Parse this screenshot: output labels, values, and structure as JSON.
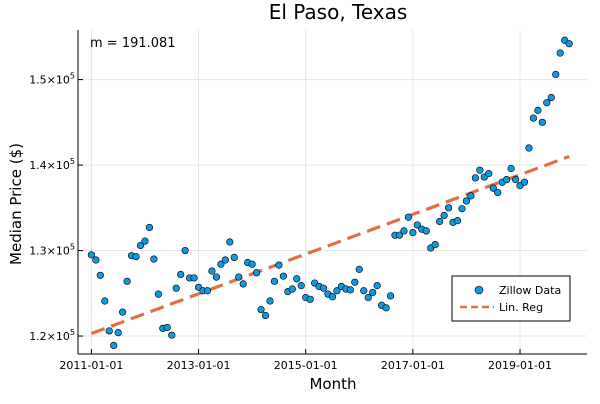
{
  "chart_data": {
    "type": "scatter",
    "title": "El Paso, Texas",
    "annotation": "m = 191.081",
    "xlabel": "Month",
    "ylabel": "Median Price ($)",
    "x_ticks": [
      "2011-01-01",
      "2013-01-01",
      "2015-01-01",
      "2017-01-01",
      "2019-01-01"
    ],
    "y_ticks": [
      {
        "value": 120000,
        "mantissa": "1.2×10",
        "exp": "5"
      },
      {
        "value": 130000,
        "mantissa": "1.3×10",
        "exp": "5"
      },
      {
        "value": 140000,
        "mantissa": "1.4×10",
        "exp": "5"
      },
      {
        "value": 150000,
        "mantissa": "1.5×10",
        "exp": "5"
      }
    ],
    "xlim": [
      "2010-10-01",
      "2020-04-01"
    ],
    "ylim": [
      117900,
      155800
    ],
    "grid": true,
    "legend_position": "bottom-right",
    "series": [
      {
        "name": "Zillow Data",
        "kind": "scatter",
        "color": "#0f99de",
        "x": [
          "2011-01-01",
          "2011-02-01",
          "2011-03-01",
          "2011-04-01",
          "2011-05-01",
          "2011-06-01",
          "2011-07-01",
          "2011-08-01",
          "2011-09-01",
          "2011-10-01",
          "2011-11-01",
          "2011-12-01",
          "2012-01-01",
          "2012-02-01",
          "2012-03-01",
          "2012-04-01",
          "2012-05-01",
          "2012-06-01",
          "2012-07-01",
          "2012-08-01",
          "2012-09-01",
          "2012-10-01",
          "2012-11-01",
          "2012-12-01",
          "2013-01-01",
          "2013-02-01",
          "2013-03-01",
          "2013-04-01",
          "2013-05-01",
          "2013-06-01",
          "2013-07-01",
          "2013-08-01",
          "2013-09-01",
          "2013-10-01",
          "2013-11-01",
          "2013-12-01",
          "2014-01-01",
          "2014-02-01",
          "2014-03-01",
          "2014-04-01",
          "2014-05-01",
          "2014-06-01",
          "2014-07-01",
          "2014-08-01",
          "2014-09-01",
          "2014-10-01",
          "2014-11-01",
          "2014-12-01",
          "2015-01-01",
          "2015-02-01",
          "2015-03-01",
          "2015-04-01",
          "2015-05-01",
          "2015-06-01",
          "2015-07-01",
          "2015-08-01",
          "2015-09-01",
          "2015-10-01",
          "2015-11-01",
          "2015-12-01",
          "2016-01-01",
          "2016-02-01",
          "2016-03-01",
          "2016-04-01",
          "2016-05-01",
          "2016-06-01",
          "2016-07-01",
          "2016-08-01",
          "2016-09-01",
          "2016-10-01",
          "2016-11-01",
          "2016-12-01",
          "2017-01-01",
          "2017-02-01",
          "2017-03-01",
          "2017-04-01",
          "2017-05-01",
          "2017-06-01",
          "2017-07-01",
          "2017-08-01",
          "2017-09-01",
          "2017-10-01",
          "2017-11-01",
          "2017-12-01",
          "2018-01-01",
          "2018-02-01",
          "2018-03-01",
          "2018-04-01",
          "2018-05-01",
          "2018-06-01",
          "2018-07-01",
          "2018-08-01",
          "2018-09-01",
          "2018-10-01",
          "2018-11-01",
          "2018-12-01",
          "2019-01-01",
          "2019-02-01",
          "2019-03-01",
          "2019-04-01",
          "2019-05-01",
          "2019-06-01",
          "2019-07-01",
          "2019-08-01",
          "2019-09-01",
          "2019-10-01",
          "2019-11-01",
          "2019-12-01"
        ],
        "y": [
          129500,
          128900,
          127100,
          124100,
          120600,
          118900,
          120400,
          122800,
          126400,
          129400,
          129300,
          130600,
          131100,
          132700,
          129000,
          124900,
          120900,
          121000,
          120100,
          125600,
          127200,
          130000,
          126800,
          126800,
          125700,
          125300,
          125300,
          127600,
          126900,
          128400,
          128900,
          131000,
          129200,
          126900,
          126100,
          128600,
          128400,
          127400,
          123100,
          122400,
          124100,
          126400,
          128300,
          127000,
          125200,
          125500,
          126700,
          125900,
          124500,
          124300,
          126200,
          125800,
          125600,
          124900,
          124600,
          125300,
          125800,
          125500,
          125400,
          126300,
          127800,
          125300,
          124500,
          125100,
          125900,
          123600,
          123300,
          124700,
          131800,
          131800,
          132300,
          133900,
          132100,
          133000,
          132500,
          132300,
          130300,
          130700,
          133400,
          134100,
          135000,
          133300,
          133500,
          134900,
          135800,
          136400,
          138500,
          139400,
          138600,
          139000,
          137300,
          136800,
          138000,
          138300,
          139600,
          138300,
          137600,
          138000,
          142000,
          145500,
          146400,
          145000,
          147300,
          147900,
          150600,
          153100,
          154600,
          154200
        ]
      },
      {
        "name": "Lin. Reg",
        "kind": "line",
        "color": "#e26f46",
        "dash": true,
        "x": [
          "2011-01-01",
          "2019-12-01"
        ],
        "y": [
          120300,
          141000
        ]
      }
    ]
  }
}
